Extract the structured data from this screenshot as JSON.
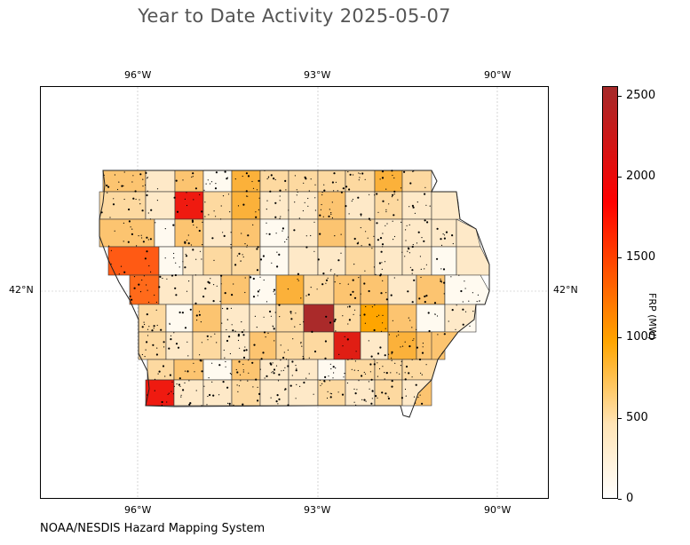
{
  "title": "Year to Date Activity 2025-05-07",
  "credit": "NOAA/NESDIS Hazard Mapping System",
  "map": {
    "lon_ticks_top": [
      "96°W",
      "93°W",
      "90°W"
    ],
    "lon_ticks_bottom": [
      "96°W",
      "93°W",
      "90°W"
    ],
    "lat_tick_left": "42°N",
    "lat_tick_right": "42°N",
    "gridlines": true,
    "county_fill_colors": [
      "#fffaf0",
      "#fee9c8",
      "#fdd9a0",
      "#fcc470",
      "#fbb13a",
      "#ffa500",
      "#ff6a1a",
      "#ff5a14",
      "#ef1a10",
      "#e01e14",
      "#aa2a2a"
    ],
    "hotspot_color": "#000000"
  },
  "colorbar": {
    "label": "FRP (MW)",
    "ticks": [
      "2500",
      "2000",
      "1500",
      "1000",
      "500",
      "0"
    ],
    "range": [
      0,
      2560
    ],
    "colors": [
      "#ffffff",
      "#ffe4b5",
      "#ffa500",
      "#ff0000",
      "#a52a2a"
    ]
  }
}
